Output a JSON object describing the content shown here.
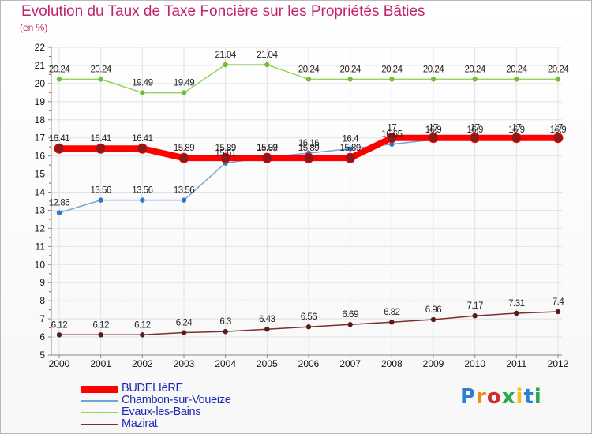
{
  "title": "Evolution du Taux de Taxe Foncière sur les Propriétés Bâties",
  "subtitle": "(en %)",
  "logo": {
    "text": "Proxiti",
    "colors": [
      "#2d7fd3",
      "#f08a1c",
      "#d22c2c",
      "#29a84a",
      "#f0c419",
      "#2d7fd3",
      "#29a84a"
    ]
  },
  "chart_data": {
    "type": "line",
    "categories": [
      "2000",
      "2001",
      "2002",
      "2003",
      "2004",
      "2005",
      "2006",
      "2007",
      "2008",
      "2009",
      "2010",
      "2011",
      "2012"
    ],
    "ylim": [
      5,
      22
    ],
    "yticks": [
      "5",
      "6",
      "7",
      "8",
      "9",
      "10",
      "11",
      "12",
      "13",
      "14",
      "15",
      "16",
      "17",
      "18",
      "19",
      "20",
      "21",
      "22"
    ],
    "grid": true,
    "legend_position": "bottom-left",
    "series": [
      {
        "name": "BUDELIèRE",
        "color": "#ff0000",
        "marker": "#8b1a1a",
        "width": 8,
        "values": [
          16.41,
          16.41,
          16.41,
          15.89,
          15.89,
          15.89,
          15.89,
          15.89,
          17,
          17,
          17,
          17,
          17
        ],
        "labels": [
          "16.41",
          "16.41",
          "16.41",
          "15.89",
          "15.89",
          "15.89",
          "15.89",
          "15.89",
          "17",
          "17",
          "17",
          "17",
          "17"
        ]
      },
      {
        "name": "Chambon-sur-Voueize",
        "color": "#6fa5d6",
        "marker": "#2f78c4",
        "width": 1.5,
        "values": [
          12.86,
          13.56,
          13.56,
          13.56,
          15.61,
          15.92,
          16.16,
          16.4,
          16.65,
          16.9,
          16.9,
          16.9,
          16.9
        ],
        "labels": [
          "12.86",
          "13.56",
          "13.56",
          "13.56",
          "15.61",
          "15.92",
          "16.16",
          "16.4",
          "16.65",
          "16.9",
          "16.9",
          "16.9",
          "16.9"
        ]
      },
      {
        "name": "Evaux-les-Bains",
        "color": "#93d45a",
        "marker": "#6fbf3a",
        "width": 1.5,
        "values": [
          20.24,
          20.24,
          19.49,
          19.49,
          21.04,
          21.04,
          20.24,
          20.24,
          20.24,
          20.24,
          20.24,
          20.24,
          20.24
        ],
        "labels": [
          "20.24",
          "20.24",
          "19.49",
          "19.49",
          "21.04",
          "21.04",
          "20.24",
          "20.24",
          "20.24",
          "20.24",
          "20.24",
          "20.24",
          "20.24"
        ]
      },
      {
        "name": "Mazirat",
        "color": "#7a3030",
        "marker": "#5a1a1a",
        "width": 1.5,
        "values": [
          6.12,
          6.12,
          6.12,
          6.24,
          6.3,
          6.43,
          6.56,
          6.69,
          6.82,
          6.96,
          7.17,
          7.31,
          7.4
        ],
        "labels": [
          "6.12",
          "6.12",
          "6.12",
          "6.24",
          "6.3",
          "6.43",
          "6.56",
          "6.69",
          "6.82",
          "6.96",
          "7.17",
          "7.31",
          "7.4"
        ]
      }
    ]
  }
}
